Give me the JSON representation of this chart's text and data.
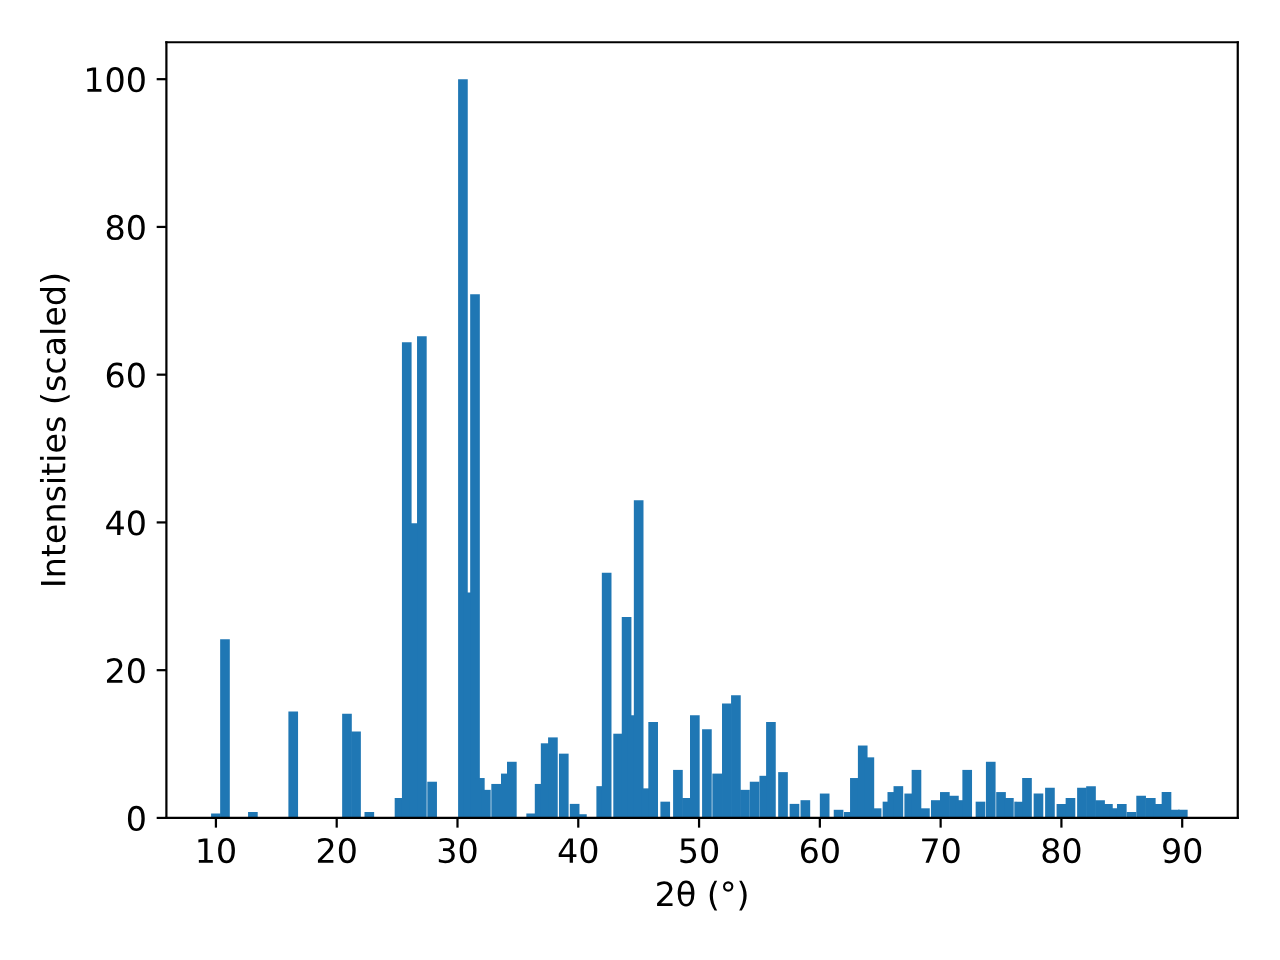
{
  "chart_data": {
    "type": "bar",
    "xlabel": "2θ (°)",
    "ylabel": "Intensities (scaled)",
    "x": [
      10.0,
      10.75,
      13.06,
      16.4,
      20.85,
      21.6,
      22.7,
      25.2,
      25.8,
      26.4,
      27.05,
      27.9,
      30.45,
      30.9,
      31.45,
      31.85,
      32.35,
      33.2,
      34.0,
      34.5,
      36.1,
      36.8,
      37.3,
      37.9,
      38.8,
      39.7,
      40.3,
      41.9,
      42.35,
      43.3,
      44.0,
      44.5,
      45.0,
      45.6,
      46.2,
      47.2,
      48.25,
      49.0,
      49.65,
      50.65,
      51.5,
      52.3,
      53.05,
      53.8,
      54.6,
      55.4,
      55.95,
      56.95,
      57.9,
      58.8,
      60.4,
      61.55,
      62.4,
      62.9,
      63.55,
      64.1,
      64.7,
      65.6,
      66.0,
      66.5,
      67.4,
      68.0,
      68.7,
      69.6,
      70.35,
      71.1,
      71.6,
      72.2,
      73.3,
      74.15,
      75.0,
      75.65,
      76.5,
      77.15,
      78.1,
      79.05,
      80.0,
      80.75,
      81.7,
      82.45,
      83.2,
      83.85,
      84.35,
      85.0,
      85.8,
      86.6,
      87.4,
      88.05,
      88.7,
      89.4,
      90.05
    ],
    "values": [
      0.6,
      24.2,
      0.8,
      14.4,
      14.1,
      11.7,
      0.8,
      2.7,
      64.4,
      39.9,
      65.2,
      4.9,
      100,
      30.5,
      70.9,
      5.4,
      3.8,
      4.6,
      6.0,
      7.6,
      0.6,
      4.6,
      10.1,
      10.9,
      8.7,
      1.9,
      0.5,
      4.3,
      33.2,
      11.4,
      27.2,
      13.9,
      43.0,
      4.0,
      13.0,
      2.2,
      6.5,
      2.7,
      13.9,
      12.0,
      6.0,
      15.5,
      16.6,
      3.8,
      4.9,
      5.7,
      13.0,
      6.2,
      1.9,
      2.4,
      3.3,
      1.1,
      0.8,
      5.4,
      9.8,
      8.2,
      1.3,
      2.2,
      3.5,
      4.3,
      3.3,
      6.5,
      1.3,
      2.4,
      3.5,
      3.0,
      2.4,
      6.5,
      2.2,
      7.6,
      3.5,
      2.7,
      2.2,
      5.4,
      3.3,
      4.1,
      1.9,
      2.7,
      4.1,
      4.3,
      2.4,
      1.9,
      1.3,
      1.9,
      0.8,
      3.0,
      2.7,
      1.9,
      3.5,
      1.1,
      1.1
    ],
    "color": "#1f77b4",
    "xlim": [
      5.9,
      94.6
    ],
    "xticks": [
      10,
      20,
      30,
      40,
      50,
      60,
      70,
      80,
      90
    ],
    "ylim": [
      0,
      105
    ],
    "yticks": [
      0,
      20,
      40,
      60,
      80,
      100
    ],
    "grid": false
  }
}
